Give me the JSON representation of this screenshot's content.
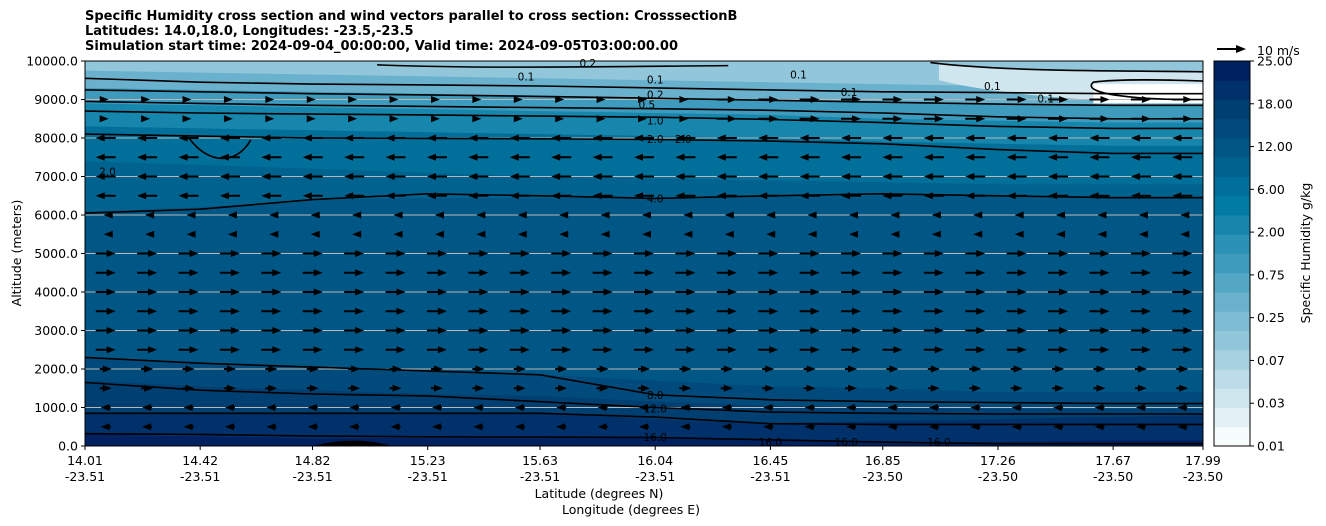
{
  "chart_data": {
    "type": "contour",
    "title": [
      "Specific Humidity cross section and wind vectors parallel to cross section: CrosssectionB",
      "Latitudes: 14.0,18.0, Longitudes: -23.5,-23.5",
      "Simulation start time: 2024-09-04_00:00:00, Valid time: 2024-09-05T03:00:00.00"
    ],
    "ylabel": "Altitude (meters)",
    "xlabel_lat": "Latitude (degrees N)",
    "xlabel_lon": "Longitude (degrees E)",
    "ylim": [
      0,
      10000
    ],
    "yticks": [
      "0.0",
      "1000.0",
      "2000.0",
      "3000.0",
      "4000.0",
      "5000.0",
      "6000.0",
      "7000.0",
      "8000.0",
      "9000.0",
      "10000.0"
    ],
    "xticks": [
      {
        "lat": "14.01",
        "lon": "-23.51"
      },
      {
        "lat": "14.42",
        "lon": "-23.51"
      },
      {
        "lat": "14.82",
        "lon": "-23.51"
      },
      {
        "lat": "15.23",
        "lon": "-23.51"
      },
      {
        "lat": "15.63",
        "lon": "-23.51"
      },
      {
        "lat": "16.04",
        "lon": "-23.51"
      },
      {
        "lat": "16.45",
        "lon": "-23.51"
      },
      {
        "lat": "16.85",
        "lon": "-23.50"
      },
      {
        "lat": "17.26",
        "lon": "-23.50"
      },
      {
        "lat": "17.67",
        "lon": "-23.50"
      },
      {
        "lat": "17.99",
        "lon": "-23.50"
      }
    ],
    "colorbar": {
      "label": "Specific Humidity g/kg",
      "ticks": [
        "0.01",
        "0.03",
        "0.07",
        "0.25",
        "0.75",
        "2.00",
        "6.00",
        "12.00",
        "18.00",
        "25.00"
      ],
      "colors": [
        "#f7fcfd",
        "#e3f1f5",
        "#cfe6ee",
        "#bbdce8",
        "#a6d1e1",
        "#92c6da",
        "#7dbcd3",
        "#69b1cc",
        "#54a6c5",
        "#3f9bbe",
        "#2b91b6",
        "#1686ad",
        "#017ba3",
        "#006f99",
        "#00638f",
        "#005785",
        "#004b7b",
        "#003f71",
        "#00316a",
        "#002160"
      ]
    },
    "quiver_key": "10 m/s",
    "contour_labels": [
      {
        "text": "0.1",
        "lat": 16.04,
        "alt": 9520
      },
      {
        "text": "0.2",
        "lat": 16.04,
        "alt": 9130
      },
      {
        "text": "0.5",
        "lat": 16.01,
        "alt": 8870
      },
      {
        "text": "1.0",
        "lat": 16.04,
        "alt": 8460
      },
      {
        "text": "2.0",
        "lat": 16.04,
        "alt": 7970
      },
      {
        "text": "2.0",
        "lat": 16.14,
        "alt": 7970
      },
      {
        "text": "4.0",
        "lat": 16.04,
        "alt": 6430
      },
      {
        "text": "8.0",
        "lat": 16.04,
        "alt": 1320
      },
      {
        "text": "12.0",
        "lat": 16.04,
        "alt": 980
      },
      {
        "text": "16.0",
        "lat": 16.04,
        "alt": 240
      },
      {
        "text": "2.0",
        "lat": 14.09,
        "alt": 7130
      },
      {
        "text": "0.1",
        "lat": 15.58,
        "alt": 9600
      },
      {
        "text": "0.2",
        "lat": 15.8,
        "alt": 9950
      },
      {
        "text": "0.1",
        "lat": 16.55,
        "alt": 9650
      },
      {
        "text": "0.1",
        "lat": 16.73,
        "alt": 9200
      },
      {
        "text": "0.1",
        "lat": 17.24,
        "alt": 9350
      },
      {
        "text": "0.1",
        "lat": 17.43,
        "alt": 9030
      },
      {
        "text": "16.0",
        "lat": 16.45,
        "alt": 100
      },
      {
        "text": "16.0",
        "lat": 16.72,
        "alt": 110
      },
      {
        "text": "16.0",
        "lat": 17.05,
        "alt": 100
      }
    ]
  }
}
